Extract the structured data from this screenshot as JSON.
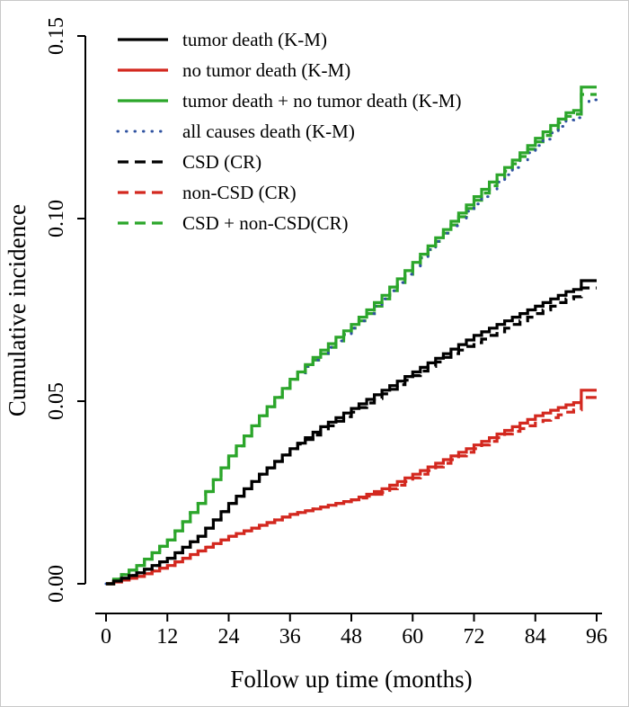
{
  "figure": {
    "border_color": "#c9c9c9",
    "background": "#ffffff"
  },
  "chart_data": {
    "type": "line",
    "subtype": "kaplan-meier-step-curves",
    "title": "",
    "xlabel": "Follow up time (months)",
    "ylabel": "Cumulative incidence",
    "xlim": [
      0,
      96
    ],
    "ylim": [
      0,
      0.15
    ],
    "xticks": [
      0,
      12,
      24,
      36,
      48,
      60,
      72,
      84,
      96
    ],
    "ytick_labels": [
      "0.00",
      "0.05",
      "0.10",
      "0.15"
    ],
    "ytick_values": [
      0,
      0.05,
      0.1,
      0.15
    ],
    "grid": false,
    "legend_position": "top-left",
    "x": [
      0,
      6,
      12,
      18,
      24,
      30,
      36,
      42,
      48,
      54,
      60,
      66,
      72,
      78,
      84,
      90,
      92.5,
      93,
      96
    ],
    "series": [
      {
        "id": "tumor-death-km",
        "name": "tumor death (K-M)",
        "color": "#000000",
        "style": "solid",
        "values": [
          0,
          0.003,
          0.007,
          0.013,
          0.022,
          0.03,
          0.037,
          0.043,
          0.048,
          0.053,
          0.058,
          0.063,
          0.068,
          0.072,
          0.076,
          0.08,
          0.081,
          0.083,
          0.083
        ]
      },
      {
        "id": "no-tumor-death-km",
        "name": "no tumor death (K-M)",
        "color": "#d3281f",
        "style": "solid",
        "values": [
          0,
          0.002,
          0.005,
          0.009,
          0.013,
          0.016,
          0.019,
          0.021,
          0.023,
          0.026,
          0.03,
          0.034,
          0.038,
          0.042,
          0.046,
          0.049,
          0.05,
          0.053,
          0.053
        ]
      },
      {
        "id": "tumor-plus-no-tumor-death-km",
        "name": "tumor death + no tumor death (K-M)",
        "color": "#2ca62b",
        "style": "solid",
        "values": [
          0,
          0.005,
          0.012,
          0.022,
          0.035,
          0.046,
          0.056,
          0.064,
          0.071,
          0.079,
          0.088,
          0.097,
          0.106,
          0.114,
          0.122,
          0.129,
          0.13,
          0.136,
          0.136
        ]
      },
      {
        "id": "all-causes-death-km",
        "name": "all causes death (K-M)",
        "color": "#2f52a0",
        "style": "dotted",
        "values": [
          0,
          0.005,
          0.012,
          0.022,
          0.035,
          0.046,
          0.056,
          0.063,
          0.07,
          0.078,
          0.087,
          0.096,
          0.104,
          0.112,
          0.12,
          0.127,
          0.128,
          0.132,
          0.133
        ]
      },
      {
        "id": "csd-cr",
        "name": "CSD (CR)",
        "color": "#000000",
        "style": "dashed",
        "values": [
          0,
          0.003,
          0.007,
          0.013,
          0.022,
          0.03,
          0.037,
          0.042,
          0.047,
          0.052,
          0.057,
          0.062,
          0.066,
          0.07,
          0.074,
          0.078,
          0.079,
          0.081,
          0.081
        ]
      },
      {
        "id": "non-csd-cr",
        "name": "non-CSD (CR)",
        "color": "#d3281f",
        "style": "dashed",
        "values": [
          0,
          0.002,
          0.005,
          0.009,
          0.013,
          0.016,
          0.019,
          0.021,
          0.023,
          0.025,
          0.029,
          0.033,
          0.037,
          0.041,
          0.044,
          0.047,
          0.048,
          0.051,
          0.051
        ]
      },
      {
        "id": "csd-plus-non-csd-cr",
        "name": "CSD + non-CSD(CR)",
        "color": "#2ca62b",
        "style": "dashed",
        "values": [
          0,
          0.005,
          0.012,
          0.022,
          0.035,
          0.046,
          0.056,
          0.063,
          0.07,
          0.078,
          0.087,
          0.096,
          0.105,
          0.113,
          0.121,
          0.128,
          0.129,
          0.134,
          0.134
        ]
      }
    ]
  }
}
